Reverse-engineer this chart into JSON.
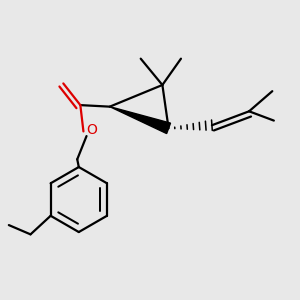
{
  "bg_color": "#e8e8e8",
  "bond_color": "#000000",
  "oxygen_color": "#dd0000",
  "lw": 1.6,
  "dbo": 0.008
}
